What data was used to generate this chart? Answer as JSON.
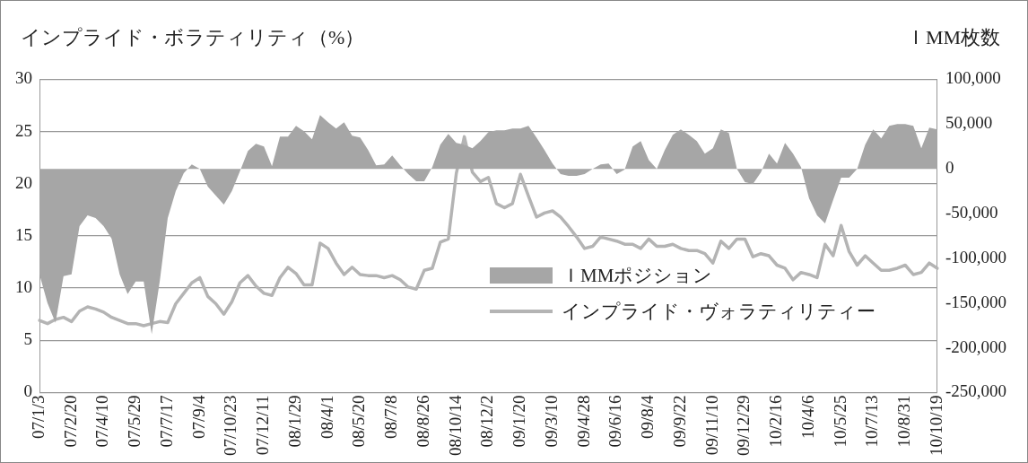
{
  "chart_data": {
    "type": "line",
    "ylabel": "インプライド・ボラティリティ（%）",
    "y2label": "ＩMM枚数",
    "categories": [
      "07/1/3",
      null,
      null,
      null,
      "07/2/20",
      null,
      null,
      null,
      "07/4/10",
      null,
      null,
      null,
      "07/5/29",
      null,
      null,
      null,
      "07/7/17",
      null,
      null,
      null,
      "07/9/4",
      null,
      null,
      null,
      "07/10/23",
      null,
      null,
      null,
      "07/12/11",
      null,
      null,
      null,
      "08/1/29",
      null,
      null,
      null,
      "08/4/1",
      null,
      null,
      null,
      "08/5/20",
      null,
      null,
      null,
      "08/7/8",
      null,
      null,
      null,
      "08/8/26",
      null,
      null,
      null,
      "08/10/14",
      null,
      null,
      null,
      "08/12/2",
      null,
      null,
      null,
      "09/1/20",
      null,
      null,
      null,
      "09/3/10",
      null,
      null,
      null,
      "09/4/28",
      null,
      null,
      null,
      "09/6/16",
      null,
      null,
      null,
      "09/8/4",
      null,
      null,
      null,
      "09/9/22",
      null,
      null,
      null,
      "09/11/10",
      null,
      null,
      null,
      "09/12/29",
      null,
      null,
      null,
      "10/2/16",
      null,
      null,
      null,
      "10/4/6",
      null,
      null,
      null,
      "10/5/25",
      null,
      null,
      null,
      "10/7/13",
      null,
      null,
      null,
      "10/8/31",
      null,
      null,
      null,
      "10/10/19"
    ],
    "series": [
      {
        "name": "ＩMMポジション",
        "type": "area",
        "axis": "y2",
        "color": "#a6a6a6",
        "values": [
          -118000,
          -150000,
          -172000,
          -120000,
          -118000,
          -64000,
          -52000,
          -55000,
          -64000,
          -78000,
          -118000,
          -140000,
          -126000,
          -126000,
          -185000,
          -126000,
          -55000,
          -25000,
          -5000,
          5000,
          0,
          -20000,
          -30000,
          -40000,
          -25000,
          -3000,
          20000,
          28000,
          25000,
          3000,
          36000,
          36000,
          48000,
          42000,
          33000,
          60000,
          52000,
          45000,
          52000,
          37000,
          35000,
          21000,
          4000,
          5000,
          15000,
          4000,
          -6000,
          -14000,
          -14000,
          2000,
          27000,
          39000,
          29000,
          27000,
          23000,
          31000,
          41000,
          43000,
          43000,
          45000,
          45000,
          48000,
          35000,
          21000,
          6000,
          -6000,
          -8000,
          -8000,
          -6000,
          0,
          5000,
          6000,
          -6000,
          -1000,
          25000,
          31000,
          10000,
          0,
          21000,
          38000,
          44000,
          38000,
          31000,
          17000,
          23000,
          44000,
          40000,
          0,
          -15000,
          -17000,
          -4000,
          17000,
          6000,
          29000,
          17000,
          2000,
          -33000,
          -52000,
          -61000,
          -35000,
          -10000,
          -10000,
          0,
          27000,
          44000,
          34000,
          48000,
          50000,
          50000,
          48000,
          23000,
          46000,
          44000
        ]
      },
      {
        "name": "インプライド・ヴォラティリティー",
        "type": "line",
        "color": "#b4b4b4",
        "values": [
          6.9,
          6.6,
          7.0,
          7.2,
          6.8,
          7.8,
          8.2,
          8.0,
          7.7,
          7.2,
          6.9,
          6.6,
          6.6,
          6.4,
          6.6,
          6.8,
          6.7,
          8.5,
          9.5,
          10.5,
          11.0,
          9.2,
          8.5,
          7.5,
          8.7,
          10.5,
          11.2,
          10.2,
          9.5,
          9.3,
          11.0,
          12.0,
          11.4,
          10.3,
          10.3,
          14.3,
          13.8,
          12.4,
          11.3,
          12.0,
          11.3,
          11.2,
          11.2,
          11.0,
          11.2,
          10.8,
          10.1,
          9.9,
          11.7,
          11.9,
          14.4,
          14.7,
          21.0,
          24.5,
          21.1,
          20.2,
          20.6,
          18.1,
          17.7,
          18.1,
          20.9,
          18.8,
          16.8,
          17.2,
          17.4,
          16.8,
          15.9,
          14.9,
          13.8,
          14.0,
          14.9,
          14.7,
          14.5,
          14.2,
          14.2,
          13.8,
          14.7,
          14.0,
          14.0,
          14.2,
          13.8,
          13.6,
          13.6,
          13.3,
          12.4,
          14.5,
          13.8,
          14.7,
          14.7,
          13.0,
          13.3,
          13.1,
          12.2,
          11.9,
          10.8,
          11.5,
          11.3,
          11.0,
          14.2,
          13.1,
          16.0,
          13.5,
          12.2,
          13.1,
          12.4,
          11.7,
          11.7,
          11.9,
          12.2,
          11.3,
          11.5,
          12.4,
          11.9
        ]
      }
    ],
    "ylim": [
      0,
      30
    ],
    "yticks": [
      0,
      5,
      10,
      15,
      20,
      25,
      30
    ],
    "y2lim": [
      -250000,
      100000
    ],
    "y2ticks": [
      {
        "value": -250000,
        "label": "-250,000"
      },
      {
        "value": -200000,
        "label": "-200,000"
      },
      {
        "value": -150000,
        "label": "-150,000"
      },
      {
        "value": -100000,
        "label": "-100,000"
      },
      {
        "value": -50000,
        "label": "-50,000"
      },
      {
        "value": 0,
        "label": "0"
      },
      {
        "value": 50000,
        "label": "50,000"
      },
      {
        "value": 100000,
        "label": "100,000"
      }
    ],
    "grid": "y",
    "legend": "bottom",
    "marker": "none",
    "line_style": "solid"
  }
}
